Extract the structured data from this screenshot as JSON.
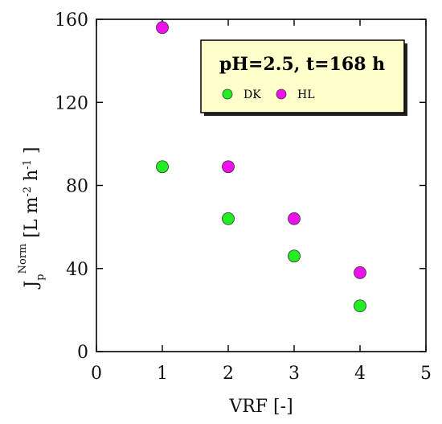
{
  "chart_data": {
    "type": "scatter",
    "x": [
      1,
      2,
      3,
      4
    ],
    "series": [
      {
        "name": "DK",
        "color": "#22ee22",
        "values": [
          89,
          64,
          46,
          22
        ]
      },
      {
        "name": "HL",
        "color": "#ee11ee",
        "values": [
          156,
          89,
          64,
          38
        ]
      }
    ],
    "xlabel": "VRF [-]",
    "ylabel": {
      "base": "J",
      "sub": "p",
      "sup": "Norm",
      "unit_open": " [L m",
      "unit_exp1": "-2",
      "unit_mid": " h",
      "unit_exp2": "-1",
      "unit_close": " ]"
    },
    "xlim": [
      0,
      5
    ],
    "ylim": [
      0,
      160
    ],
    "xticks": [
      "0",
      "1",
      "2",
      "3",
      "4",
      "5"
    ],
    "yticks": [
      "0",
      "40",
      "80",
      "120",
      "160"
    ],
    "grid": false,
    "legend": {
      "position": "top-right",
      "title": "pH=2.5, t=168 h",
      "background": "#ffffcc"
    }
  }
}
